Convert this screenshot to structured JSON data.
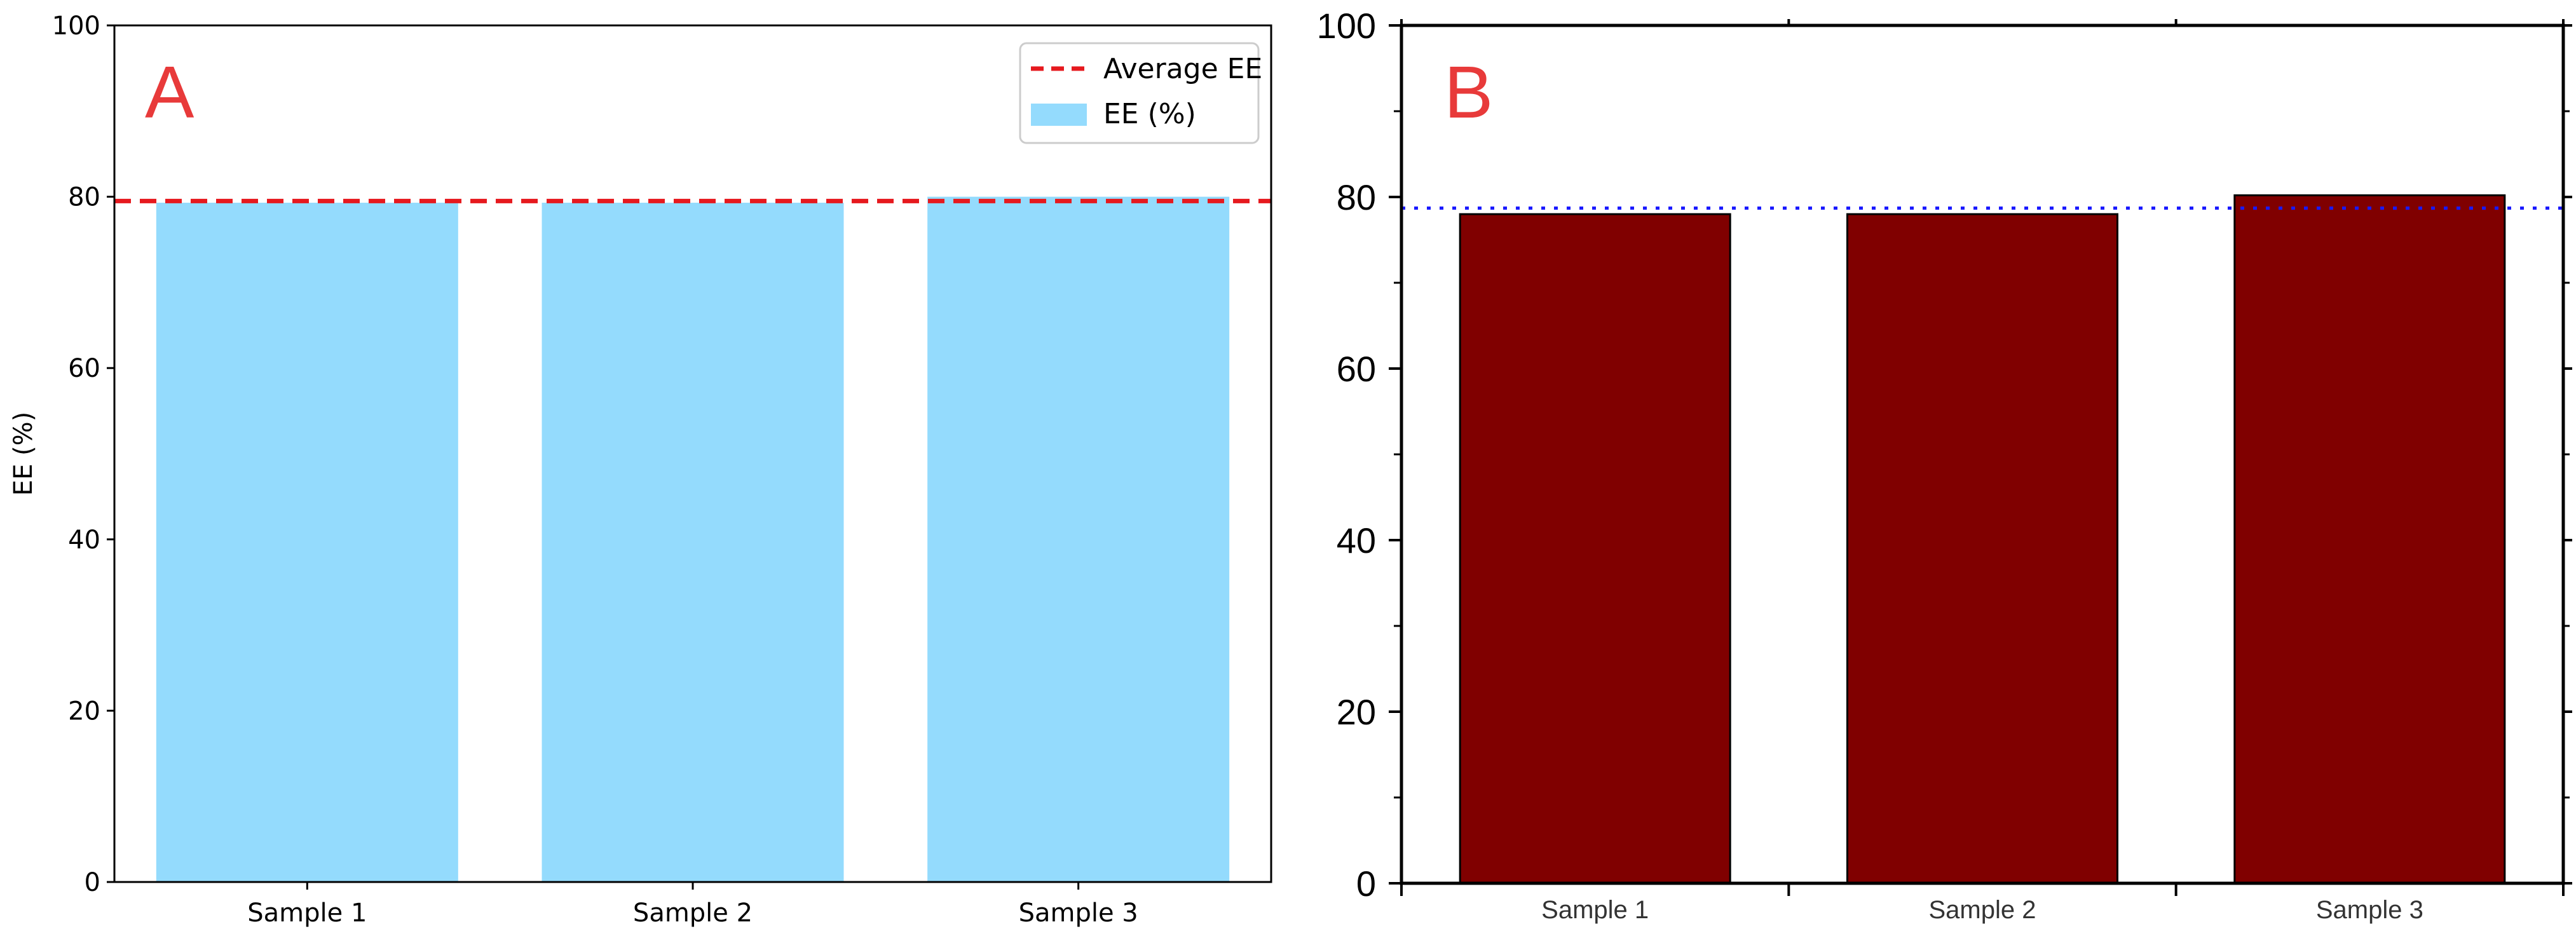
{
  "chart_data": [
    {
      "type": "bar",
      "panel_label": "A",
      "categories": [
        "Sample 1",
        "Sample 2",
        "Sample 3"
      ],
      "series": [
        {
          "name": "EE (%)",
          "values": [
            79.3,
            79.3,
            80.0
          ],
          "color": "#94dbfd"
        }
      ],
      "reference_line": {
        "name": "Average EE",
        "value": 79.5,
        "color": "#e6191e",
        "style": "dashed"
      },
      "ylabel": "EE (%)",
      "xlabel": "",
      "ylim": [
        0,
        100
      ],
      "yticks": [
        0,
        20,
        40,
        60,
        80,
        100
      ],
      "grid": false,
      "legend_position": "top-right",
      "panel_label_color": "#e83a3a"
    },
    {
      "type": "bar",
      "panel_label": "B",
      "categories": [
        "Sample 1",
        "Sample 2",
        "Sample 3"
      ],
      "series": [
        {
          "values": [
            78.0,
            78.0,
            80.2
          ],
          "color": "#800000"
        }
      ],
      "reference_line": {
        "value": 78.7,
        "color": "#1a1aff",
        "style": "dotted"
      },
      "ylabel": "",
      "xlabel": "",
      "ylim": [
        0,
        100
      ],
      "yticks": [
        0,
        20,
        40,
        60,
        80,
        100
      ],
      "grid": false,
      "panel_label_color": "#e83a3a"
    }
  ]
}
